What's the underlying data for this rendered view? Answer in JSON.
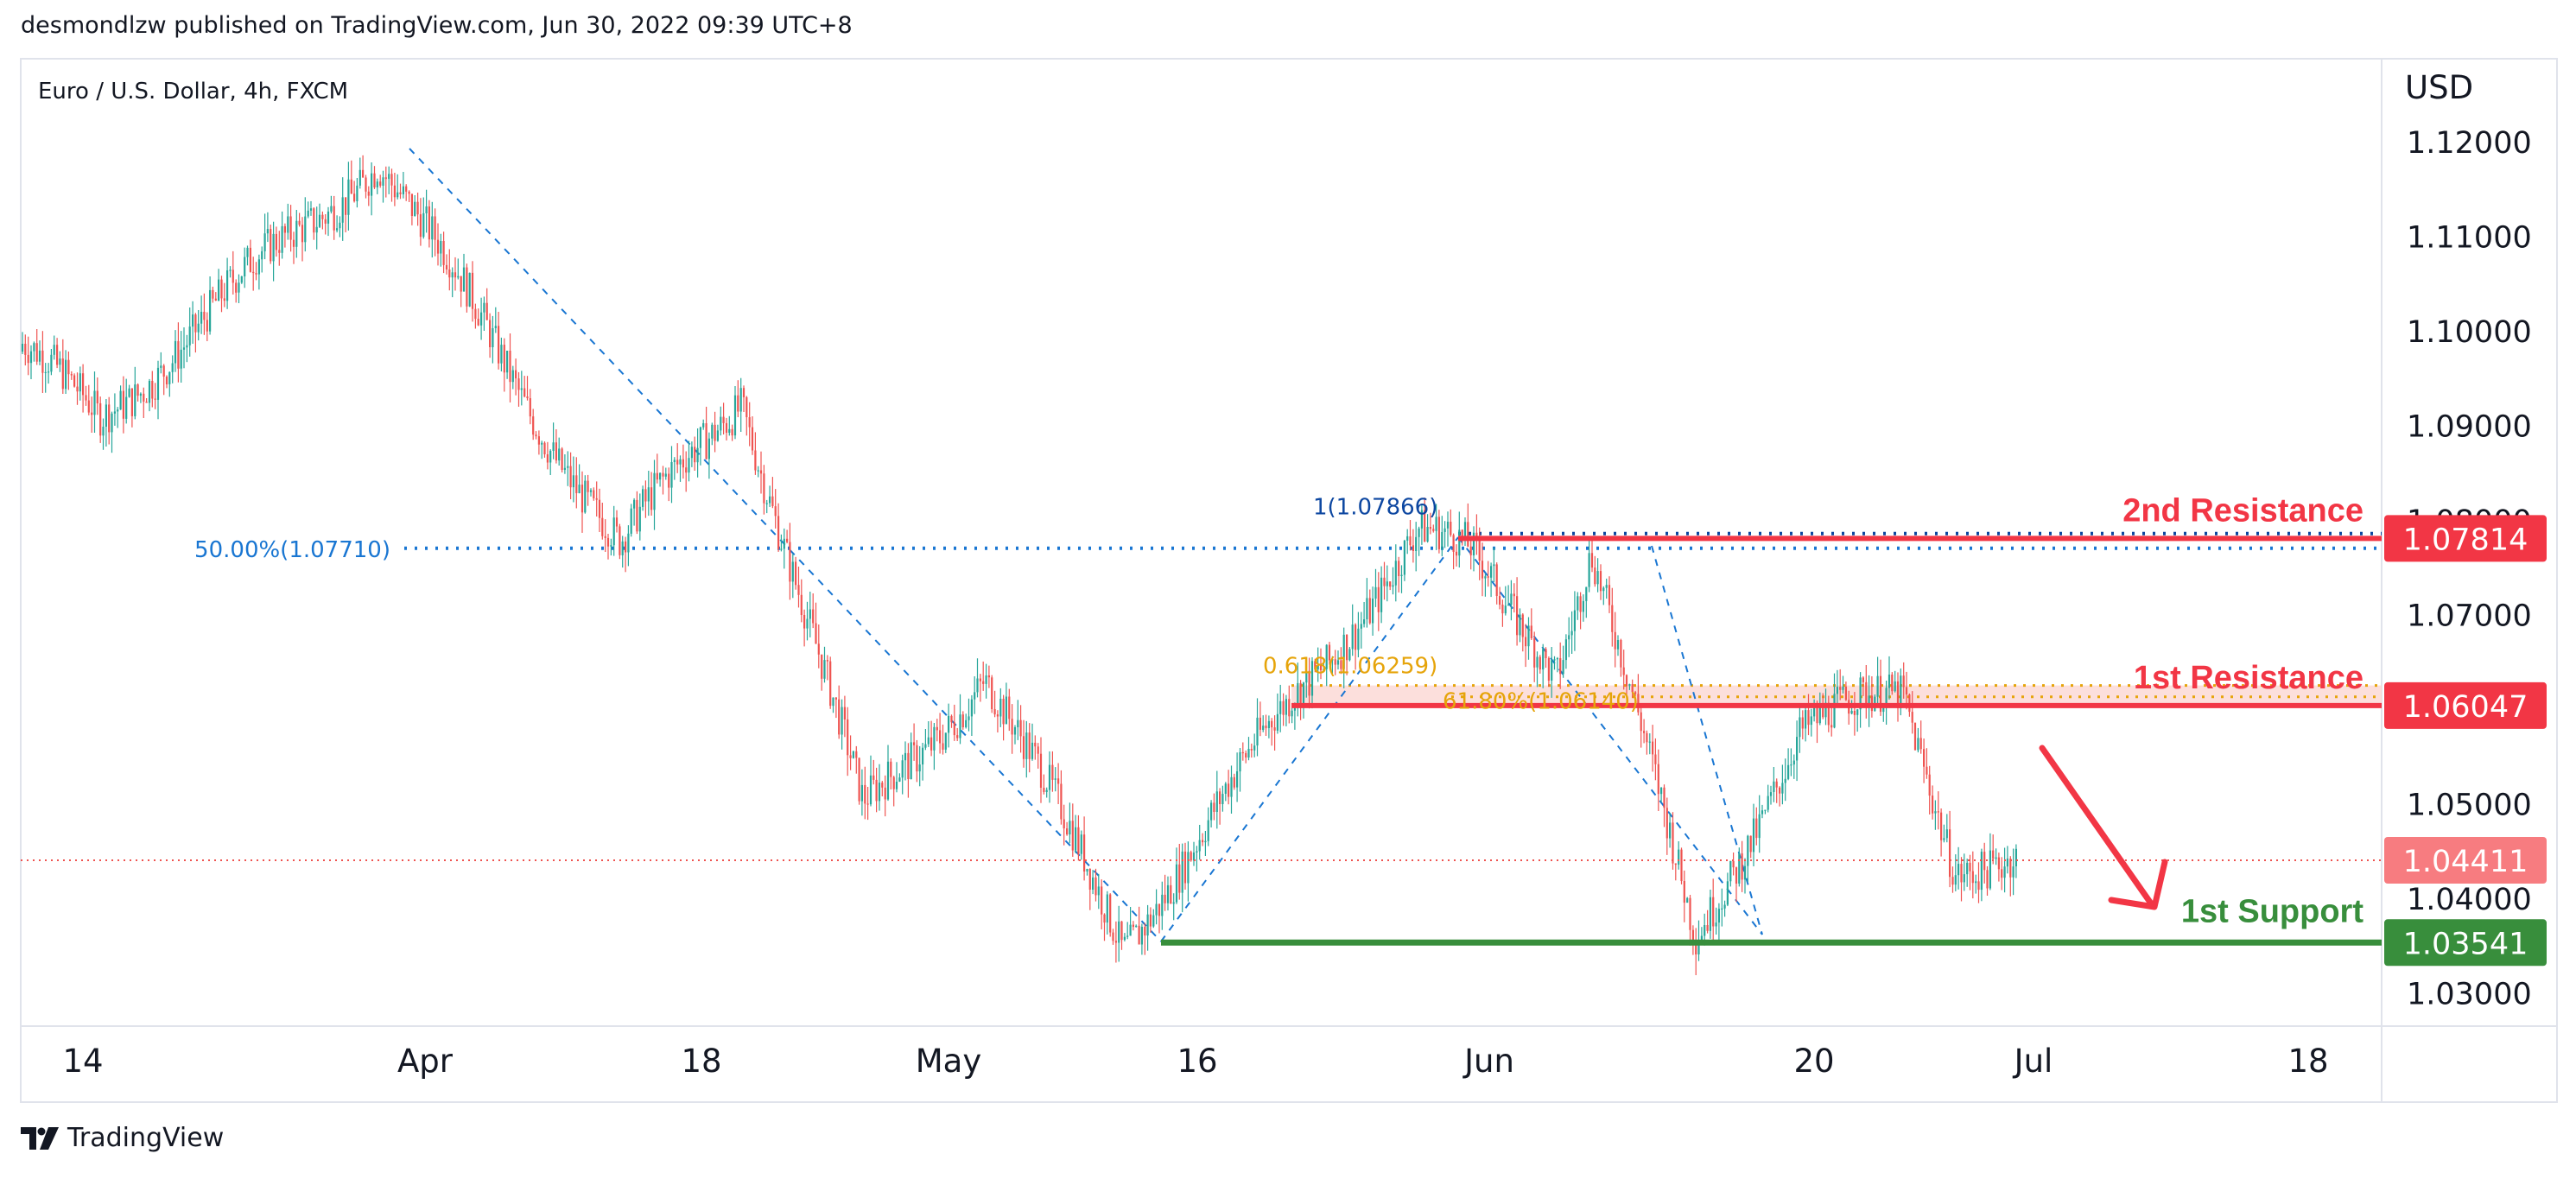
{
  "byline": "desmondlzw published on TradingView.com, Jun 30, 2022 09:39 UTC+8",
  "brand": {
    "name": "TradingView",
    "icon": "tradingview-logo-icon"
  },
  "colors": {
    "up": "#26a69a",
    "down": "#ef5350",
    "resistance": "#f23645",
    "support": "#388e3c",
    "fib": "#1976d2",
    "fib_gold": "#e6a40a",
    "zone": "#f9c9c5",
    "arrow": "#f23645"
  },
  "chart_data": {
    "type": "candlestick",
    "title": "Euro / U.S. Dollar, 4h, FXCM",
    "unit": "USD",
    "ylim": [
      1.0255,
      1.1255
    ],
    "yticks": [
      "1.12000",
      "1.11000",
      "1.10000",
      "1.09000",
      "1.08000",
      "1.07000",
      "1.05000",
      "1.04000",
      "1.03000"
    ],
    "xticks": [
      "14",
      "Apr",
      "18",
      "May",
      "16",
      "Jun",
      "20",
      "Jul",
      "18"
    ],
    "last_price": 1.04411,
    "price_labels": [
      {
        "name": "2nd-resistance-price",
        "value": "1.07814",
        "color": "#f23645"
      },
      {
        "name": "1st-resistance-price",
        "value": "1.06047",
        "color": "#f23645"
      },
      {
        "name": "last-price",
        "value": "1.04411",
        "color": "#f77c80"
      },
      {
        "name": "1st-support-price",
        "value": "1.03541",
        "color": "#388e3c"
      }
    ],
    "levels": [
      {
        "label": "2nd Resistance",
        "value": 1.07814,
        "color": "#f23645"
      },
      {
        "label": "1st Resistance",
        "value": 1.06047,
        "color": "#f23645"
      },
      {
        "label": "1st Support",
        "value": 1.03541,
        "color": "#388e3c"
      }
    ],
    "fib_labels": [
      {
        "text": "50.00%(1.07710)",
        "value": 1.0771
      },
      {
        "text": "1(1.07866)",
        "value": 1.07866
      },
      {
        "text": "0.618(1.06259)",
        "value": 1.06259
      },
      {
        "text": "61.80%(1.06140)",
        "value": 1.0614
      }
    ],
    "key_prices": [
      {
        "date": "2022-03-09",
        "price": 1.1
      },
      {
        "date": "2022-03-15",
        "price": 1.091
      },
      {
        "date": "2022-03-31",
        "price": 1.1185
      },
      {
        "date": "2022-04-14",
        "price": 1.077
      },
      {
        "date": "2022-04-21",
        "price": 1.0936
      },
      {
        "date": "2022-04-28",
        "price": 1.049
      },
      {
        "date": "2022-05-05",
        "price": 1.064
      },
      {
        "date": "2022-05-13",
        "price": 1.0354
      },
      {
        "date": "2022-05-24",
        "price": 1.064
      },
      {
        "date": "2022-05-30",
        "price": 1.0787
      },
      {
        "date": "2022-06-02",
        "price": 1.076
      },
      {
        "date": "2022-06-07",
        "price": 1.065
      },
      {
        "date": "2022-06-09",
        "price": 1.0773
      },
      {
        "date": "2022-06-15",
        "price": 1.0354
      },
      {
        "date": "2022-06-21",
        "price": 1.058
      },
      {
        "date": "2022-06-27",
        "price": 1.0614
      },
      {
        "date": "2022-06-30",
        "price": 1.0441
      }
    ]
  }
}
